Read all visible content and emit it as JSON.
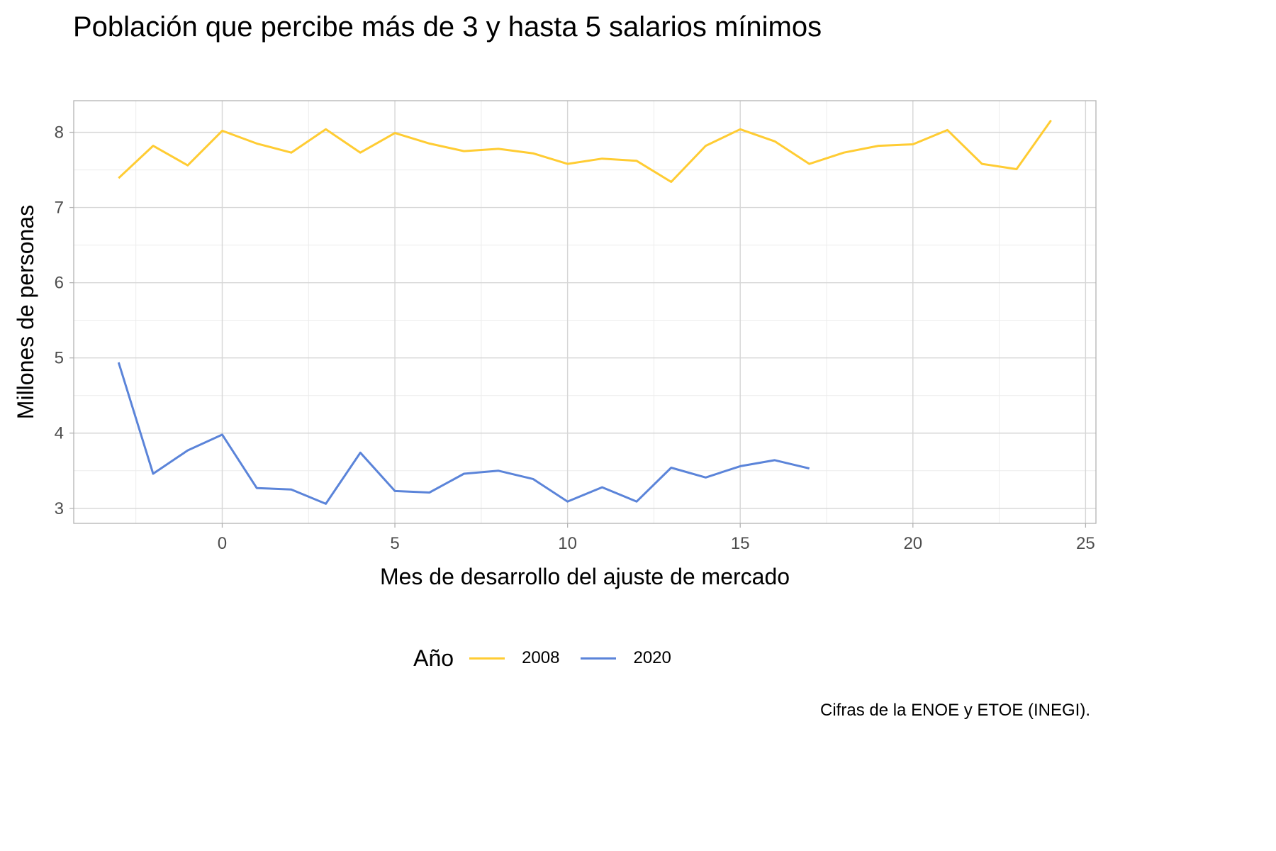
{
  "chart_data": {
    "type": "line",
    "title": "Población que percibe más de 3 y hasta 5 salarios mínimos",
    "xlabel": "Mes de desarrollo del ajuste de mercado",
    "ylabel": "Millones de personas",
    "caption": "Cifras de la ENOE y ETOE (INEGI).",
    "legend_title": "Año",
    "legend_position": "bottom",
    "grid": true,
    "xlim": [
      -4.3,
      25.3
    ],
    "ylim": [
      2.8,
      8.42
    ],
    "x_ticks": [
      0,
      5,
      10,
      15,
      20,
      25
    ],
    "y_ticks": [
      3,
      4,
      5,
      6,
      7,
      8
    ],
    "series": [
      {
        "name": "2008",
        "color": "#FFCC33",
        "x": [
          -3,
          -2,
          -1,
          0,
          1,
          2,
          3,
          4,
          5,
          6,
          7,
          8,
          9,
          10,
          11,
          12,
          13,
          14,
          15,
          16,
          17,
          18,
          19,
          20,
          21,
          22,
          23,
          24
        ],
        "values": [
          7.39,
          7.82,
          7.56,
          8.02,
          7.85,
          7.73,
          8.04,
          7.73,
          7.99,
          7.85,
          7.75,
          7.78,
          7.72,
          7.58,
          7.65,
          7.62,
          7.34,
          7.82,
          8.04,
          7.88,
          7.58,
          7.73,
          7.82,
          7.84,
          8.03,
          7.58,
          7.51,
          8.16
        ]
      },
      {
        "name": "2020",
        "color": "#5B84D9",
        "x": [
          -3,
          -2,
          -1,
          0,
          1,
          2,
          3,
          4,
          5,
          6,
          7,
          8,
          9,
          10,
          11,
          12,
          13,
          14,
          15,
          16,
          17
        ],
        "values": [
          4.94,
          3.46,
          3.77,
          3.98,
          3.27,
          3.25,
          3.06,
          3.74,
          3.23,
          3.21,
          3.46,
          3.5,
          3.39,
          3.09,
          3.28,
          3.09,
          3.54,
          3.41,
          3.56,
          3.64,
          3.53
        ]
      }
    ]
  }
}
